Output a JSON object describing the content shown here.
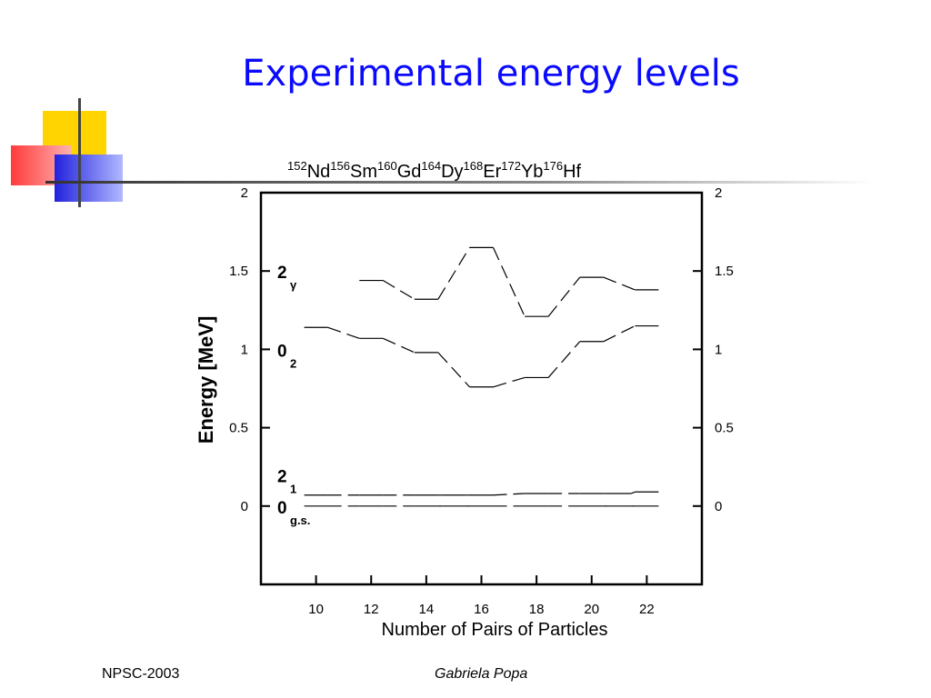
{
  "slide": {
    "title": "Experimental energy levels",
    "footer_left": "NPSC-2003",
    "footer_center": "Gabriela Popa"
  },
  "colors": {
    "title": "#0a0aff",
    "deco_yellow": "#ffd700",
    "deco_red": "#ff4d4d",
    "deco_blue": "#2a2ae0"
  },
  "chart_data": {
    "type": "line",
    "xlabel": "Number of Pairs of Particles",
    "ylabel": "Energy [MeV]",
    "xlim": [
      8,
      24
    ],
    "ylim": [
      -0.5,
      2
    ],
    "x_ticks": [
      10,
      12,
      14,
      16,
      18,
      20,
      22
    ],
    "y_ticks": [
      0,
      0.5,
      1,
      1.5,
      2
    ],
    "isotopes": [
      {
        "mass": "152",
        "symbol": "Nd"
      },
      {
        "mass": "156",
        "symbol": "Sm"
      },
      {
        "mass": "160",
        "symbol": "Gd"
      },
      {
        "mass": "164",
        "symbol": "Dy"
      },
      {
        "mass": "168",
        "symbol": "Er"
      },
      {
        "mass": "172",
        "symbol": "Yb"
      },
      {
        "mass": "176",
        "symbol": "Hf"
      }
    ],
    "state_labels": [
      {
        "main": "2",
        "sub": "γ",
        "energy": 1.5
      },
      {
        "main": "0",
        "sub": "2",
        "energy": 1.0
      },
      {
        "main": "2",
        "sub": "1",
        "energy": 0.2
      },
      {
        "main": "0",
        "sub": "g.s.",
        "energy": 0.0
      }
    ],
    "series": [
      {
        "x": [
          10,
          12,
          14,
          16,
          18,
          20,
          22
        ],
        "values": [
          1.14,
          1.07,
          0.98,
          0.76,
          0.82,
          1.05,
          1.15
        ]
      },
      {
        "x": [
          12,
          14,
          16,
          18,
          20,
          22
        ],
        "values": [
          1.44,
          1.32,
          1.65,
          1.21,
          1.46,
          1.38
        ]
      },
      {
        "x": [
          10,
          12,
          14,
          15,
          16,
          18,
          20,
          21,
          22
        ],
        "values": [
          0.07,
          0.07,
          0.07,
          0.07,
          0.07,
          0.08,
          0.08,
          0.08,
          0.09
        ]
      },
      {
        "x": [
          10,
          12,
          14,
          15,
          16,
          18,
          20,
          21,
          22
        ],
        "values": [
          0.0,
          0.0,
          0.0,
          0.0,
          0.0,
          0.0,
          0.0,
          0.0,
          0.0
        ]
      }
    ]
  }
}
